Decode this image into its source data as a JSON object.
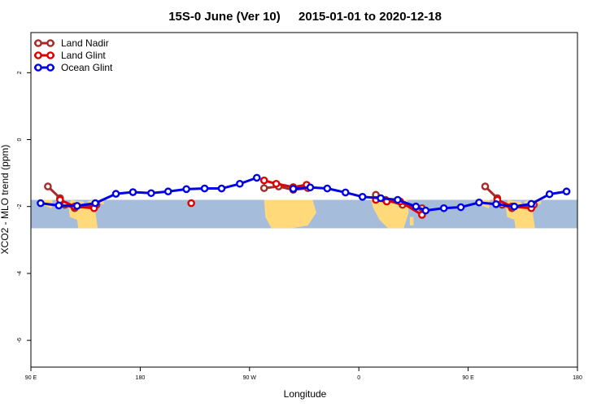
{
  "chart_data": {
    "type": "line",
    "title_left": "15S-0 June (Ver 10)",
    "title_right": "2015-01-01 to 2020-12-18",
    "xlabel": "Longitude",
    "ylabel": "XCO2 - MLO trend (ppm)",
    "ylim": [
      -6.8,
      3.2
    ],
    "xlim": [
      90,
      540
    ],
    "x_ticks": [
      {
        "value": 90,
        "label": "90 E"
      },
      {
        "value": 180,
        "label": "180"
      },
      {
        "value": 270,
        "label": "90 W"
      },
      {
        "value": 360,
        "label": "0"
      },
      {
        "value": 450,
        "label": "90 E"
      },
      {
        "value": 540,
        "label": "180"
      }
    ],
    "y_ticks": [
      {
        "value": 2,
        "label": "2"
      },
      {
        "value": 0,
        "label": "0"
      },
      {
        "value": -2,
        "label": "-2"
      },
      {
        "value": -4,
        "label": "-4"
      },
      {
        "value": -6,
        "label": "-6"
      }
    ],
    "map_band": {
      "lat_top": -1.8,
      "lat_bottom": -2.65,
      "ocean_color": "#a5bddb",
      "land_color": "#ffd97a"
    },
    "legend_position": "top-left",
    "series": [
      {
        "name": "Land Nadir",
        "color": "#a52a2a",
        "segments": [
          [
            {
              "x": 104,
              "y": -1.4
            },
            {
              "x": 114,
              "y": -1.75
            },
            {
              "x": 118,
              "y": -1.95
            },
            {
              "x": 126,
              "y": -2.05
            },
            {
              "x": 144,
              "y": -1.95
            }
          ],
          [
            {
              "x": 282,
              "y": -1.45
            },
            {
              "x": 294,
              "y": -1.4
            },
            {
              "x": 306,
              "y": -1.5
            },
            {
              "x": 318,
              "y": -1.45
            }
          ],
          [
            {
              "x": 374,
              "y": -1.65
            },
            {
              "x": 382,
              "y": -1.8
            },
            {
              "x": 396,
              "y": -1.95
            },
            {
              "x": 412,
              "y": -2.05
            }
          ],
          [
            {
              "x": 464,
              "y": -1.4
            },
            {
              "x": 474,
              "y": -1.75
            },
            {
              "x": 478,
              "y": -1.95
            },
            {
              "x": 486,
              "y": -2.05
            },
            {
              "x": 504,
              "y": -1.95
            }
          ]
        ]
      },
      {
        "name": "Land Glint",
        "color": "#e00000",
        "segments": [
          [
            {
              "x": 114,
              "y": -1.8
            },
            {
              "x": 126,
              "y": -2.0
            },
            {
              "x": 142,
              "y": -2.05
            }
          ],
          [
            {
              "x": 222,
              "y": -1.9
            }
          ],
          [
            {
              "x": 282,
              "y": -1.22
            },
            {
              "x": 292,
              "y": -1.32
            },
            {
              "x": 306,
              "y": -1.42
            },
            {
              "x": 317,
              "y": -1.35
            }
          ],
          [
            {
              "x": 374,
              "y": -1.8
            },
            {
              "x": 383,
              "y": -1.85
            },
            {
              "x": 394,
              "y": -1.85
            },
            {
              "x": 412,
              "y": -2.25
            }
          ],
          [
            {
              "x": 474,
              "y": -1.8
            },
            {
              "x": 486,
              "y": -2.0
            },
            {
              "x": 502,
              "y": -2.05
            }
          ]
        ]
      },
      {
        "name": "Ocean Glint",
        "color": "#0000e6",
        "segments": [
          [
            {
              "x": 98,
              "y": -1.9
            },
            {
              "x": 113,
              "y": -1.97
            },
            {
              "x": 128,
              "y": -1.98
            },
            {
              "x": 143,
              "y": -1.9
            },
            {
              "x": 160,
              "y": -1.62
            },
            {
              "x": 174,
              "y": -1.57
            },
            {
              "x": 189,
              "y": -1.6
            },
            {
              "x": 203,
              "y": -1.55
            },
            {
              "x": 218,
              "y": -1.48
            },
            {
              "x": 233,
              "y": -1.46
            },
            {
              "x": 247,
              "y": -1.46
            },
            {
              "x": 262,
              "y": -1.32
            },
            {
              "x": 276,
              "y": -1.14
            }
          ],
          [
            {
              "x": 306,
              "y": -1.47
            },
            {
              "x": 320,
              "y": -1.43
            },
            {
              "x": 334,
              "y": -1.46
            },
            {
              "x": 349,
              "y": -1.58
            },
            {
              "x": 363,
              "y": -1.71
            },
            {
              "x": 378,
              "y": -1.75
            },
            {
              "x": 392,
              "y": -1.8
            },
            {
              "x": 407,
              "y": -2.0
            },
            {
              "x": 415,
              "y": -2.12
            },
            {
              "x": 430,
              "y": -2.05
            },
            {
              "x": 444,
              "y": -2.02
            },
            {
              "x": 459,
              "y": -1.88
            },
            {
              "x": 473,
              "y": -1.93
            },
            {
              "x": 488,
              "y": -2.0
            },
            {
              "x": 502,
              "y": -1.92
            },
            {
              "x": 517,
              "y": -1.63
            },
            {
              "x": 531,
              "y": -1.55
            }
          ]
        ]
      }
    ]
  }
}
